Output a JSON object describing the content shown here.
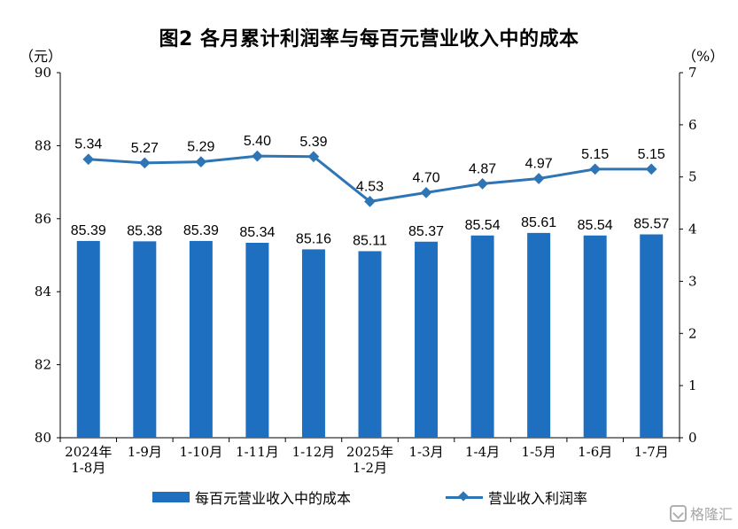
{
  "title": "图2 各月累计利润率与每百元营业收入中的成本",
  "left_unit": "（元）",
  "right_unit": "（%）",
  "watermark": "格隆汇",
  "legend": {
    "bar_label": "每百元营业收入中的成本",
    "line_label": "营业收入利润率"
  },
  "colors": {
    "bar": "#1f6fc0",
    "line": "#2e75b6",
    "axis": "#000000"
  },
  "chart_data": {
    "type": "bar+line",
    "title": "图2 各月累计利润率与每百元营业收入中的成本",
    "categories": [
      [
        "2024年",
        "1-8月"
      ],
      [
        "1-9月"
      ],
      [
        "1-10月"
      ],
      [
        "1-11月"
      ],
      [
        "1-12月"
      ],
      [
        "2025年",
        "1-2月"
      ],
      [
        "1-3月"
      ],
      [
        "1-4月"
      ],
      [
        "1-5月"
      ],
      [
        "1-6月"
      ],
      [
        "1-7月"
      ]
    ],
    "series": [
      {
        "name": "每百元营业收入中的成本",
        "type": "bar",
        "axis": "left",
        "values": [
          85.39,
          85.38,
          85.39,
          85.34,
          85.16,
          85.11,
          85.37,
          85.54,
          85.61,
          85.54,
          85.57
        ]
      },
      {
        "name": "营业收入利润率",
        "type": "line",
        "axis": "right",
        "values": [
          5.34,
          5.27,
          5.29,
          5.4,
          5.39,
          4.53,
          4.7,
          4.87,
          4.97,
          5.15,
          5.15
        ]
      }
    ],
    "left_axis": {
      "ylim": [
        80,
        90
      ],
      "ticks": [
        80,
        82,
        84,
        86,
        88,
        90
      ],
      "unit": "（元）"
    },
    "right_axis": {
      "ylim": [
        0,
        7
      ],
      "ticks": [
        0,
        1,
        2,
        3,
        4,
        5,
        6,
        7
      ],
      "unit": "（%）"
    },
    "grid": false,
    "legend_position": "bottom"
  }
}
